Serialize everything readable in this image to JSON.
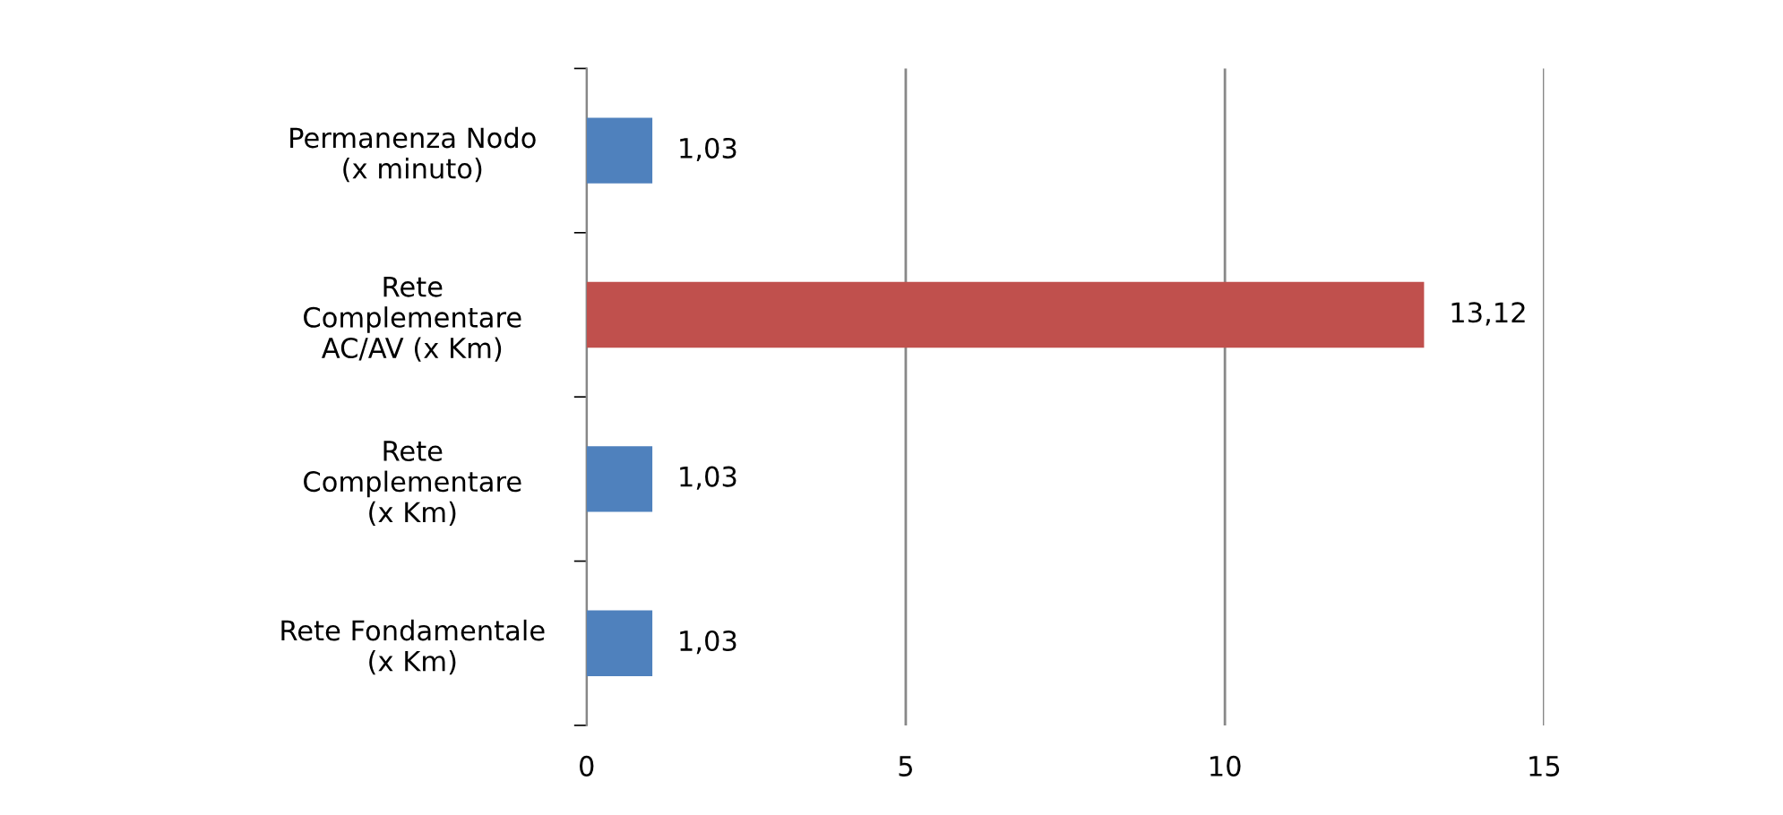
{
  "chart_data": {
    "type": "bar",
    "orientation": "horizontal",
    "categories": [
      "Permanenza Nodo\n(x minuto)",
      "Rete\nComplementare\nAC/AV (x Km)",
      "Rete\nComplementare\n(x Km)",
      "Rete Fondamentale\n(x Km)"
    ],
    "values": [
      1.03,
      13.12,
      1.03,
      1.03
    ],
    "colors": [
      "#4f81bd",
      "#c0504d",
      "#4f81bd",
      "#4f81bd"
    ],
    "value_labels": [
      "1,03",
      "13,12",
      "1,03",
      "1,03"
    ],
    "xlim": [
      0,
      15
    ],
    "xticks": [
      0,
      5,
      10,
      15
    ],
    "grid": "x"
  }
}
